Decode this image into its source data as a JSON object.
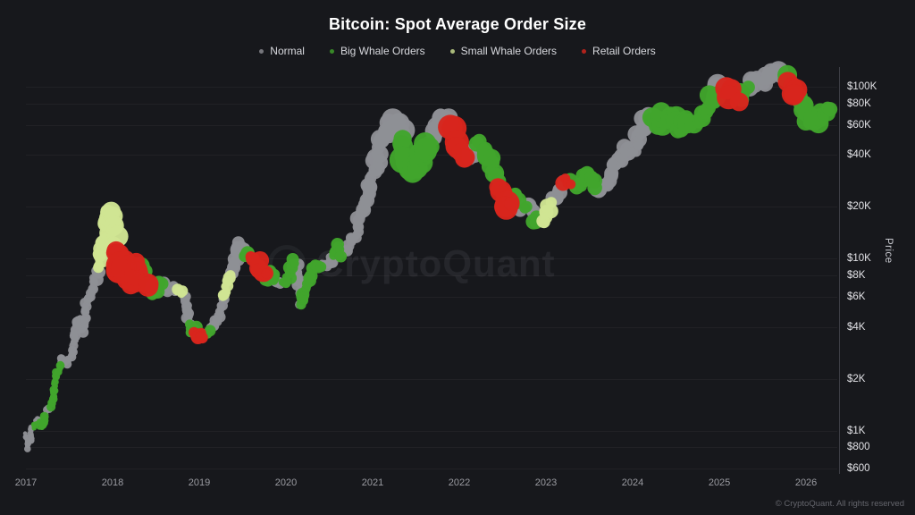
{
  "title": "Bitcoin: Spot Average Order Size",
  "watermark": "CryptoQuant",
  "footer": {
    "text": "© CryptoQuant. All rights reserved"
  },
  "colors": {
    "normal": "#8e8f95",
    "big_whale": "#41a52c",
    "small_whale": "#cfe493",
    "retail": "#d8251d"
  },
  "legend": [
    {
      "key": "N",
      "label": "Normal",
      "color": "#8e8f95"
    },
    {
      "key": "B",
      "label": "Big Whale Orders",
      "color": "#41a52c"
    },
    {
      "key": "S",
      "label": "Small Whale Orders",
      "color": "#cfe493"
    },
    {
      "key": "R",
      "label": "Retail Orders",
      "color": "#d8251d"
    }
  ],
  "y_axis": {
    "label": "Price",
    "scale": "log",
    "ticks": [
      {
        "label": "$100K",
        "value": 100000
      },
      {
        "label": "$80K",
        "value": 80000
      },
      {
        "label": "$60K",
        "value": 60000
      },
      {
        "label": "$40K",
        "value": 40000
      },
      {
        "label": "$20K",
        "value": 20000
      },
      {
        "label": "$10K",
        "value": 10000
      },
      {
        "label": "$8K",
        "value": 8000
      },
      {
        "label": "$6K",
        "value": 6000
      },
      {
        "label": "$4K",
        "value": 4000
      },
      {
        "label": "$2K",
        "value": 2000
      },
      {
        "label": "$1K",
        "value": 1000
      },
      {
        "label": "$800",
        "value": 800
      },
      {
        "label": "$600",
        "value": 600
      }
    ]
  },
  "x_axis": {
    "ticks": [
      2017,
      2018,
      2019,
      2020,
      2021,
      2022,
      2023,
      2024,
      2025,
      2026
    ]
  },
  "chart_data": {
    "type": "scatter",
    "title": "Bitcoin: Spot Average Order Size",
    "ylabel": "Price",
    "y_scale": "log",
    "x_range": [
      2017.0,
      2026.36
    ],
    "y_range": [
      560,
      130000
    ],
    "grid": true,
    "legend_position": "top-center",
    "categories": {
      "N": "Normal",
      "B": "Big Whale Orders",
      "S": "Small Whale Orders",
      "R": "Retail Orders"
    },
    "point_format": [
      "year_decimal",
      "price_usd",
      "category_key",
      "dot_radius_px"
    ],
    "points": [
      [
        2017.0,
        950,
        "N",
        3
      ],
      [
        2017.03,
        800,
        "N",
        3
      ],
      [
        2017.07,
        1010,
        "N",
        3
      ],
      [
        2017.1,
        1090,
        "B",
        3
      ],
      [
        2017.14,
        1180,
        "N",
        3
      ],
      [
        2017.18,
        1060,
        "B",
        4
      ],
      [
        2017.22,
        1220,
        "B",
        4
      ],
      [
        2017.26,
        1310,
        "N",
        4
      ],
      [
        2017.3,
        1420,
        "B",
        4
      ],
      [
        2017.34,
        1900,
        "B",
        4
      ],
      [
        2017.38,
        2300,
        "B",
        4
      ],
      [
        2017.42,
        2650,
        "N",
        4
      ],
      [
        2017.46,
        2480,
        "N",
        4
      ],
      [
        2017.5,
        2550,
        "N",
        4
      ],
      [
        2017.54,
        2950,
        "N",
        4
      ],
      [
        2017.58,
        4050,
        "N",
        5
      ],
      [
        2017.62,
        4450,
        "N",
        5
      ],
      [
        2017.66,
        3850,
        "N",
        5
      ],
      [
        2017.7,
        5300,
        "N",
        5
      ],
      [
        2017.74,
        6200,
        "N",
        5
      ],
      [
        2017.78,
        7200,
        "N",
        5
      ],
      [
        2017.82,
        8000,
        "N",
        6
      ],
      [
        2017.85,
        9800,
        "S",
        7
      ],
      [
        2017.89,
        12500,
        "S",
        8
      ],
      [
        2017.93,
        16500,
        "S",
        9
      ],
      [
        2017.96,
        19300,
        "S",
        9
      ],
      [
        2018.0,
        17000,
        "S",
        9
      ],
      [
        2018.03,
        14000,
        "S",
        9
      ],
      [
        2018.07,
        10500,
        "R",
        11
      ],
      [
        2018.11,
        8600,
        "R",
        13
      ],
      [
        2018.15,
        10000,
        "R",
        13
      ],
      [
        2018.19,
        8200,
        "R",
        13
      ],
      [
        2018.23,
        7200,
        "R",
        12
      ],
      [
        2018.27,
        8800,
        "R",
        12
      ],
      [
        2018.31,
        9200,
        "R",
        11
      ],
      [
        2018.35,
        8400,
        "B",
        9
      ],
      [
        2018.4,
        7400,
        "R",
        10
      ],
      [
        2018.44,
        6700,
        "R",
        10
      ],
      [
        2018.48,
        6300,
        "B",
        8
      ],
      [
        2018.52,
        6700,
        "B",
        8
      ],
      [
        2018.56,
        7400,
        "B",
        7
      ],
      [
        2018.6,
        7000,
        "N",
        6
      ],
      [
        2018.64,
        6400,
        "N",
        6
      ],
      [
        2018.68,
        6800,
        "N",
        6
      ],
      [
        2018.72,
        6600,
        "N",
        6
      ],
      [
        2018.76,
        6500,
        "S",
        5
      ],
      [
        2018.8,
        6400,
        "S",
        5
      ],
      [
        2018.84,
        6000,
        "N",
        5
      ],
      [
        2018.87,
        4500,
        "N",
        5
      ],
      [
        2018.9,
        3700,
        "B",
        6
      ],
      [
        2018.94,
        4000,
        "B",
        6
      ],
      [
        2018.97,
        3400,
        "R",
        7
      ],
      [
        2019.01,
        3700,
        "R",
        7
      ],
      [
        2019.05,
        3500,
        "R",
        6
      ],
      [
        2019.09,
        3600,
        "B",
        5
      ],
      [
        2019.13,
        3900,
        "N",
        5
      ],
      [
        2019.17,
        4000,
        "N",
        5
      ],
      [
        2019.22,
        4700,
        "N",
        5
      ],
      [
        2019.26,
        5300,
        "N",
        5
      ],
      [
        2019.3,
        6500,
        "S",
        5
      ],
      [
        2019.34,
        8000,
        "S",
        6
      ],
      [
        2019.38,
        8100,
        "N",
        6
      ],
      [
        2019.42,
        9800,
        "N",
        6
      ],
      [
        2019.46,
        12200,
        "N",
        7
      ],
      [
        2019.5,
        11200,
        "N",
        6
      ],
      [
        2019.54,
        10100,
        "B",
        6
      ],
      [
        2019.58,
        10700,
        "B",
        7
      ],
      [
        2019.62,
        9900,
        "R",
        8
      ],
      [
        2019.66,
        9300,
        "R",
        8
      ],
      [
        2019.7,
        8300,
        "R",
        8
      ],
      [
        2019.75,
        8300,
        "R",
        7
      ],
      [
        2019.79,
        7600,
        "B",
        6
      ],
      [
        2019.83,
        8800,
        "B",
        6
      ],
      [
        2019.87,
        7400,
        "B",
        6
      ],
      [
        2019.91,
        7100,
        "N",
        5
      ],
      [
        2019.95,
        7300,
        "N",
        5
      ],
      [
        2020.0,
        7200,
        "B",
        5
      ],
      [
        2020.05,
        8500,
        "B",
        6
      ],
      [
        2020.09,
        9600,
        "B",
        6
      ],
      [
        2020.13,
        8800,
        "N",
        6
      ],
      [
        2020.17,
        5300,
        "N",
        5
      ],
      [
        2020.2,
        5600,
        "B",
        6
      ],
      [
        2020.24,
        6700,
        "B",
        6
      ],
      [
        2020.28,
        7700,
        "B",
        6
      ],
      [
        2020.32,
        8800,
        "B",
        6
      ],
      [
        2020.36,
        9500,
        "B",
        6
      ],
      [
        2020.4,
        9100,
        "B",
        6
      ],
      [
        2020.44,
        9300,
        "N",
        5
      ],
      [
        2020.48,
        9200,
        "N",
        5
      ],
      [
        2020.52,
        9800,
        "N",
        5
      ],
      [
        2020.56,
        11200,
        "B",
        6
      ],
      [
        2020.6,
        11600,
        "B",
        6
      ],
      [
        2020.64,
        10400,
        "B",
        6
      ],
      [
        2020.68,
        10700,
        "N",
        6
      ],
      [
        2020.72,
        11600,
        "N",
        6
      ],
      [
        2020.76,
        13100,
        "N",
        6
      ],
      [
        2020.8,
        13600,
        "N",
        6
      ],
      [
        2020.84,
        15600,
        "N",
        7
      ],
      [
        2020.88,
        18400,
        "N",
        7
      ],
      [
        2020.92,
        19600,
        "N",
        7
      ],
      [
        2020.96,
        26500,
        "N",
        7
      ],
      [
        2021.0,
        29500,
        "N",
        7
      ],
      [
        2021.04,
        34000,
        "N",
        8
      ],
      [
        2021.08,
        46000,
        "N",
        8
      ],
      [
        2021.12,
        48500,
        "N",
        9
      ],
      [
        2021.16,
        54000,
        "N",
        9
      ],
      [
        2021.2,
        58500,
        "N",
        10
      ],
      [
        2021.24,
        59500,
        "N",
        10
      ],
      [
        2021.28,
        63500,
        "N",
        10
      ],
      [
        2021.32,
        57000,
        "N",
        10
      ],
      [
        2021.36,
        47000,
        "B",
        12
      ],
      [
        2021.4,
        37000,
        "B",
        13
      ],
      [
        2021.44,
        35000,
        "B",
        13
      ],
      [
        2021.48,
        32500,
        "B",
        13
      ],
      [
        2021.52,
        34500,
        "B",
        12
      ],
      [
        2021.56,
        40000,
        "B",
        11
      ],
      [
        2021.6,
        46500,
        "B",
        10
      ],
      [
        2021.64,
        44500,
        "B",
        10
      ],
      [
        2021.68,
        49000,
        "N",
        9
      ],
      [
        2021.72,
        55000,
        "N",
        9
      ],
      [
        2021.76,
        60000,
        "N",
        9
      ],
      [
        2021.8,
        63000,
        "N",
        9
      ],
      [
        2021.84,
        67500,
        "N",
        9
      ],
      [
        2021.88,
        64000,
        "N",
        9
      ],
      [
        2021.92,
        57000,
        "R",
        11
      ],
      [
        2021.96,
        50500,
        "R",
        12
      ],
      [
        2022.0,
        44500,
        "R",
        12
      ],
      [
        2022.04,
        38500,
        "R",
        12
      ],
      [
        2022.08,
        37500,
        "R",
        11
      ],
      [
        2022.12,
        42000,
        "N",
        8
      ],
      [
        2022.16,
        40000,
        "N",
        8
      ],
      [
        2022.2,
        43500,
        "N",
        8
      ],
      [
        2022.24,
        46000,
        "B",
        9
      ],
      [
        2022.28,
        42500,
        "B",
        9
      ],
      [
        2022.32,
        39500,
        "B",
        9
      ],
      [
        2022.36,
        36000,
        "B",
        9
      ],
      [
        2022.4,
        30500,
        "B",
        9
      ],
      [
        2022.44,
        29500,
        "B",
        9
      ],
      [
        2022.48,
        25000,
        "R",
        10
      ],
      [
        2022.52,
        20500,
        "R",
        11
      ],
      [
        2022.56,
        19500,
        "R",
        10
      ],
      [
        2022.6,
        23000,
        "B",
        8
      ],
      [
        2022.64,
        23500,
        "B",
        8
      ],
      [
        2022.68,
        20000,
        "N",
        7
      ],
      [
        2022.72,
        19500,
        "N",
        7
      ],
      [
        2022.76,
        19300,
        "B",
        7
      ],
      [
        2022.8,
        20500,
        "N",
        7
      ],
      [
        2022.84,
        19000,
        "N",
        7
      ],
      [
        2022.88,
        16300,
        "B",
        7
      ],
      [
        2022.92,
        16800,
        "N",
        6
      ],
      [
        2022.96,
        16600,
        "N",
        6
      ],
      [
        2023.0,
        16800,
        "S",
        6
      ],
      [
        2023.04,
        21500,
        "S",
        7
      ],
      [
        2023.08,
        23200,
        "N",
        7
      ],
      [
        2023.12,
        23500,
        "N",
        7
      ],
      [
        2023.16,
        25000,
        "N",
        7
      ],
      [
        2023.2,
        28000,
        "N",
        7
      ],
      [
        2023.24,
        28500,
        "R",
        7
      ],
      [
        2023.28,
        27500,
        "R",
        7
      ],
      [
        2023.32,
        27000,
        "B",
        7
      ],
      [
        2023.36,
        26500,
        "B",
        7
      ],
      [
        2023.4,
        27000,
        "B",
        7
      ],
      [
        2023.44,
        30500,
        "B",
        7
      ],
      [
        2023.48,
        30000,
        "B",
        7
      ],
      [
        2023.52,
        29500,
        "B",
        7
      ],
      [
        2023.56,
        26000,
        "B",
        7
      ],
      [
        2023.6,
        26000,
        "N",
        7
      ],
      [
        2023.64,
        25800,
        "N",
        6
      ],
      [
        2023.68,
        26500,
        "N",
        6
      ],
      [
        2023.72,
        27500,
        "N",
        7
      ],
      [
        2023.76,
        34000,
        "N",
        7
      ],
      [
        2023.8,
        34500,
        "N",
        7
      ],
      [
        2023.84,
        37000,
        "N",
        7
      ],
      [
        2023.88,
        37500,
        "N",
        7
      ],
      [
        2023.92,
        42000,
        "N",
        7
      ],
      [
        2023.96,
        43500,
        "N",
        7
      ],
      [
        2024.0,
        42500,
        "N",
        7
      ],
      [
        2024.04,
        43000,
        "N",
        7
      ],
      [
        2024.08,
        52000,
        "N",
        8
      ],
      [
        2024.12,
        62000,
        "N",
        8
      ],
      [
        2024.16,
        68500,
        "N",
        8
      ],
      [
        2024.2,
        67000,
        "B",
        9
      ],
      [
        2024.24,
        64000,
        "B",
        10
      ],
      [
        2024.28,
        63500,
        "B",
        10
      ],
      [
        2024.32,
        60000,
        "B",
        10
      ],
      [
        2024.36,
        67500,
        "B",
        10
      ],
      [
        2024.4,
        69000,
        "B",
        10
      ],
      [
        2024.44,
        66000,
        "B",
        10
      ],
      [
        2024.48,
        61000,
        "B",
        10
      ],
      [
        2024.52,
        57500,
        "B",
        10
      ],
      [
        2024.56,
        58000,
        "B",
        10
      ],
      [
        2024.6,
        64500,
        "B",
        10
      ],
      [
        2024.64,
        59000,
        "B",
        10
      ],
      [
        2024.68,
        60500,
        "B",
        9
      ],
      [
        2024.72,
        62500,
        "B",
        9
      ],
      [
        2024.76,
        63000,
        "B",
        9
      ],
      [
        2024.8,
        67000,
        "B",
        9
      ],
      [
        2024.84,
        69500,
        "B",
        9
      ],
      [
        2024.88,
        75500,
        "B",
        9
      ],
      [
        2024.92,
        91000,
        "B",
        9
      ],
      [
        2024.96,
        97000,
        "N",
        9
      ],
      [
        2025.0,
        102000,
        "N",
        9
      ],
      [
        2025.04,
        104500,
        "N",
        9
      ],
      [
        2025.08,
        97500,
        "N",
        9
      ],
      [
        2025.12,
        96000,
        "R",
        10
      ],
      [
        2025.16,
        86000,
        "R",
        11
      ],
      [
        2025.2,
        84000,
        "R",
        10
      ],
      [
        2025.24,
        88000,
        "B",
        9
      ],
      [
        2025.28,
        94500,
        "B",
        9
      ],
      [
        2025.32,
        97000,
        "B",
        9
      ],
      [
        2025.36,
        104000,
        "N",
        9
      ],
      [
        2025.4,
        106000,
        "N",
        9
      ],
      [
        2025.44,
        110000,
        "N",
        9
      ],
      [
        2025.48,
        107000,
        "N",
        9
      ],
      [
        2025.52,
        108500,
        "N",
        9
      ],
      [
        2025.56,
        118000,
        "N",
        9
      ],
      [
        2025.6,
        121000,
        "N",
        9
      ],
      [
        2025.64,
        117000,
        "N",
        9
      ],
      [
        2025.68,
        121500,
        "N",
        9
      ],
      [
        2025.72,
        115000,
        "N",
        9
      ],
      [
        2025.76,
        111000,
        "B",
        9
      ],
      [
        2025.8,
        103000,
        "R",
        10
      ],
      [
        2025.84,
        92500,
        "R",
        11
      ],
      [
        2025.88,
        86500,
        "R",
        10
      ],
      [
        2025.92,
        90000,
        "B",
        9
      ],
      [
        2025.96,
        78000,
        "B",
        9
      ],
      [
        2026.0,
        70000,
        "B",
        9
      ],
      [
        2026.04,
        64000,
        "B",
        9
      ],
      [
        2026.08,
        60500,
        "B",
        9
      ],
      [
        2026.12,
        67000,
        "B",
        9
      ],
      [
        2026.16,
        71500,
        "B",
        9
      ],
      [
        2026.2,
        68000,
        "B",
        8
      ],
      [
        2026.24,
        72500,
        "B",
        8
      ],
      [
        2026.28,
        74000,
        "B",
        8
      ]
    ]
  }
}
